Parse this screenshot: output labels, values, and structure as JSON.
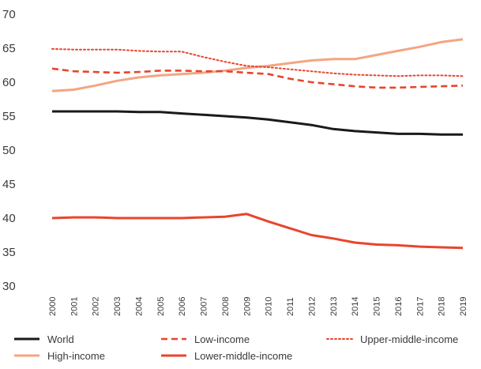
{
  "chart_data": {
    "type": "line",
    "title": "",
    "xlabel": "",
    "ylabel": "",
    "ylim": [
      30,
      70
    ],
    "yticks": [
      30,
      35,
      40,
      45,
      50,
      55,
      60,
      65,
      70
    ],
    "grid": false,
    "legend_position": "bottom",
    "x": [
      "2000",
      "2001",
      "2002",
      "2003",
      "2004",
      "2005",
      "2006",
      "2007",
      "2008",
      "2009",
      "2010",
      "2011",
      "2012",
      "2013",
      "2014",
      "2015",
      "2016",
      "2017",
      "2018",
      "2019"
    ],
    "series": [
      {
        "name": "World",
        "color": "#1a1a1a",
        "dash": "solid",
        "values": [
          55.7,
          55.7,
          55.7,
          55.7,
          55.6,
          55.6,
          55.4,
          55.2,
          55.0,
          54.8,
          54.5,
          54.1,
          53.7,
          53.1,
          52.8,
          52.6,
          52.4,
          52.4,
          52.3,
          52.3
        ]
      },
      {
        "name": "Low-income",
        "color": "#e8452c",
        "dash": "dashed",
        "values": [
          62.0,
          61.6,
          61.5,
          61.4,
          61.5,
          61.7,
          61.7,
          61.6,
          61.6,
          61.4,
          61.2,
          60.5,
          60.0,
          59.7,
          59.4,
          59.2,
          59.2,
          59.3,
          59.4,
          59.5
        ]
      },
      {
        "name": "Upper-middle-income",
        "color": "#e8452c",
        "dash": "dotted",
        "values": [
          64.9,
          64.8,
          64.8,
          64.8,
          64.6,
          64.5,
          64.5,
          63.7,
          63.0,
          62.4,
          62.2,
          61.9,
          61.6,
          61.3,
          61.1,
          61.0,
          60.9,
          61.0,
          61.0,
          60.9
        ]
      },
      {
        "name": "High-income",
        "color": "#f4a582",
        "dash": "solid",
        "values": [
          58.7,
          58.9,
          59.5,
          60.2,
          60.7,
          61.0,
          61.2,
          61.4,
          61.7,
          62.1,
          62.4,
          62.8,
          63.2,
          63.4,
          63.4,
          64.0,
          64.6,
          65.2,
          65.9,
          66.3
        ]
      },
      {
        "name": "Lower-middle-income",
        "color": "#e8452c",
        "dash": "solid",
        "values": [
          40.0,
          40.1,
          40.1,
          40.0,
          40.0,
          40.0,
          40.0,
          40.1,
          40.2,
          40.6,
          39.5,
          38.5,
          37.5,
          37.0,
          36.4,
          36.1,
          36.0,
          35.8,
          35.7,
          35.6
        ]
      }
    ]
  }
}
